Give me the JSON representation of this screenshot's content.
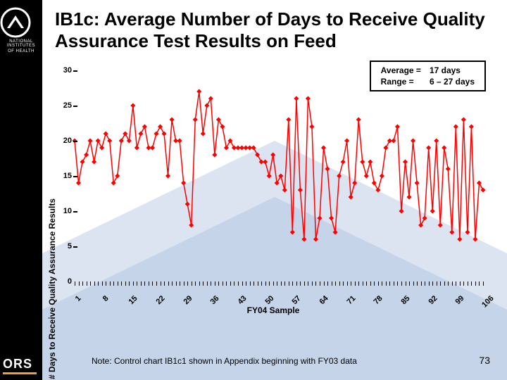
{
  "title": "IB1c:  Average Number of Days to Receive Quality Assurance Test Results on Feed",
  "note": "Note:  Control chart IB1c1 shown in Appendix beginning with FY03 data",
  "page_number": "73",
  "logo": {
    "nih_top": "NATIONAL INSTITUTES",
    "nih_bottom": "OF HEALTH",
    "ors": "ORS",
    "ring_color": "#ffffff",
    "triangle_color": "#ffffff",
    "ors_underline_color": "#f0a030"
  },
  "info_box": {
    "rows": [
      {
        "label": "Average =",
        "value": "17 days"
      },
      {
        "label": "Range =",
        "value": "6 – 27 days"
      }
    ]
  },
  "chart": {
    "type": "line",
    "ylabel": "# Days to Receive Quality Assurance Results",
    "xlabel": "FY04 Sample",
    "ylim": [
      0,
      30
    ],
    "yticks": [
      0,
      5,
      10,
      15,
      20,
      25,
      30
    ],
    "xtick_labels": [
      1,
      8,
      15,
      22,
      29,
      36,
      43,
      50,
      57,
      64,
      71,
      78,
      85,
      92,
      99,
      106
    ],
    "xtick_step": 7,
    "n_points": 106,
    "line_color": "#ff0000",
    "marker_color": "#ff0000",
    "line_width": 1.5,
    "marker_size": 5,
    "background_color": "#ffffff",
    "chevron_color": "#dbe4f0",
    "values": [
      20,
      14,
      17,
      18,
      20,
      17,
      20,
      19,
      21,
      20,
      14,
      15,
      20,
      21,
      20,
      25,
      19,
      21,
      22,
      19,
      19,
      21,
      22,
      21,
      15,
      23,
      20,
      20,
      14,
      11,
      8,
      23,
      27,
      21,
      25,
      26,
      18,
      23,
      22,
      19,
      20,
      19,
      19,
      19,
      19,
      19,
      19,
      18,
      17,
      17,
      15,
      18,
      14,
      15,
      13,
      23,
      7,
      26,
      13,
      6,
      26,
      22,
      6,
      9,
      19,
      16,
      9,
      7,
      15,
      17,
      20,
      12,
      14,
      23,
      17,
      15,
      17,
      14,
      13,
      15,
      19,
      20,
      20,
      22,
      10,
      17,
      12,
      20,
      14,
      8,
      9,
      19,
      10,
      20,
      8,
      19,
      16,
      7,
      22,
      6,
      23,
      7,
      22,
      6,
      14,
      13
    ]
  }
}
